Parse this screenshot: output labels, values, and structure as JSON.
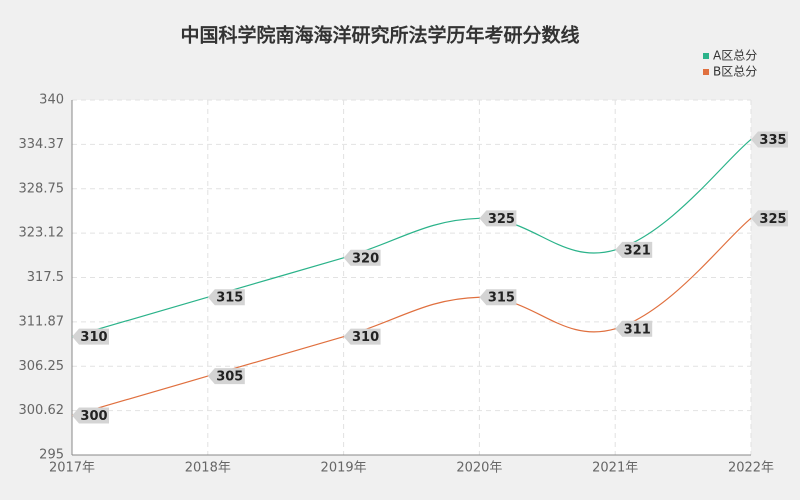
{
  "chart_data": {
    "type": "line",
    "title": "中国科学院南海海洋研究所法学历年考研分数线",
    "categories": [
      "2017年",
      "2018年",
      "2019年",
      "2020年",
      "2021年",
      "2022年"
    ],
    "series": [
      {
        "name": "A区总分",
        "color": "#2bb38a",
        "values": [
          310,
          315,
          320,
          325,
          321,
          335
        ]
      },
      {
        "name": "B区总分",
        "color": "#e0703f",
        "values": [
          300,
          305,
          310,
          315,
          311,
          325
        ]
      }
    ],
    "ylim": [
      295,
      340
    ],
    "yticks": [
      295,
      300.62,
      306.25,
      311.87,
      317.5,
      323.12,
      328.75,
      334.37,
      340
    ],
    "grid": true,
    "smooth": true,
    "legend": "top-right"
  }
}
